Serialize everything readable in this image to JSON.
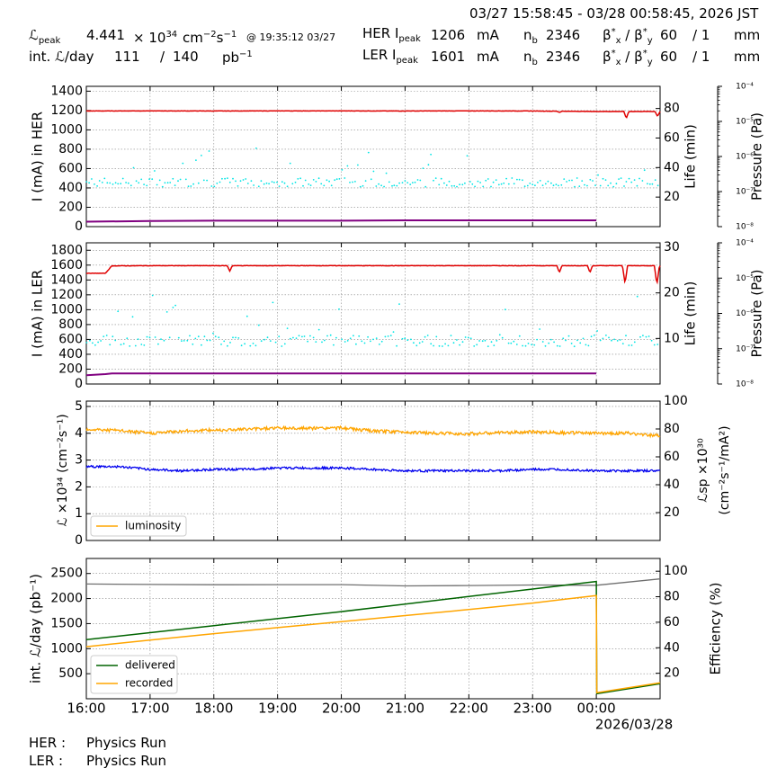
{
  "header": {
    "time_range": "03/27 15:58:45 - 03/28 00:58:45, 2026 JST",
    "lpeak_label": "ℒ",
    "lpeak_sub": "peak",
    "lpeak_value": "4.441",
    "lpeak_mult": "× 10",
    "lpeak_exp": "34",
    "lpeak_unit_a": "cm",
    "lpeak_unit_a_exp": "−2",
    "lpeak_unit_b": "s",
    "lpeak_unit_b_exp": "−1",
    "lpeak_time": "@ 19:35:12 03/27",
    "intl_label": "int. ℒ/day",
    "intl_value": "111",
    "intl_slash": "/",
    "intl_max": "140",
    "intl_unit": "pb",
    "intl_unit_exp": "−1",
    "her_label": "HER I",
    "her_sub": "peak",
    "her_value": "1206",
    "her_unit": "mA",
    "ler_label": "LER I",
    "ler_sub": "peak",
    "ler_value": "1601",
    "ler_unit": "mA",
    "nb_label": "n",
    "nb_sub": "b",
    "her_nb": "2346",
    "ler_nb": "2346",
    "beta_label": "β",
    "beta_sup": "*",
    "beta_x": "x",
    "beta_y": "y",
    "beta_slash": "/",
    "her_beta_x": "60",
    "her_beta_y": "/ 1",
    "ler_beta_x": "60",
    "ler_beta_y": "/ 1",
    "beta_unit": "mm"
  },
  "footer": {
    "her_label": "HER :",
    "her_status": "Physics Run",
    "ler_label": "LER :",
    "ler_status": "Physics Run"
  },
  "colors": {
    "current": "#e00000",
    "life": "#00e5e5",
    "pressure": "#800080",
    "luminosity": "#ffa500",
    "specific": "#0000ee",
    "delivered": "#006400",
    "recorded": "#ffa500",
    "efficiency": "#707070",
    "grid": "#888888"
  },
  "chart_data": [
    {
      "type": "line",
      "panel": "her",
      "ylabel": "I (mA) in HER",
      "ylim": [
        0,
        1450
      ],
      "yticks": [
        "0",
        "200",
        "400",
        "600",
        "800",
        "1000",
        "1200",
        "1400"
      ],
      "y2label": "Life (min)",
      "y2lim": [
        0,
        95
      ],
      "y2ticks": [
        "20",
        "40",
        "60",
        "80"
      ],
      "y3label": "Pressure (Pa)",
      "y3lim_log": [
        -8,
        -4
      ],
      "y3ticks": [
        "10⁻⁸",
        "10⁻⁷",
        "10⁻⁶",
        "10⁻⁵",
        "10⁻⁴"
      ],
      "x_hours": [
        0,
        1,
        2,
        3,
        4,
        5,
        6,
        7,
        8
      ],
      "current_mA": [
        1195,
        1196,
        1195,
        1196,
        1196,
        1195,
        1196,
        1195,
        1190
      ],
      "current_dips": [
        [
          7.42,
          1180
        ],
        [
          8.47,
          1120
        ],
        [
          8.96,
          1140
        ]
      ],
      "life_typical_min": 30,
      "pressure_log": [
        -7.86,
        -7.84,
        -7.83,
        -7.83,
        -7.83,
        -7.82,
        -7.82,
        -7.82,
        -7.82
      ]
    },
    {
      "type": "line",
      "panel": "ler",
      "ylabel": "I (mA) in LER",
      "ylim": [
        0,
        1900
      ],
      "yticks": [
        "0",
        "200",
        "400",
        "600",
        "800",
        "1000",
        "1200",
        "1400",
        "1600",
        "1800"
      ],
      "y2label": "Life (min)",
      "y2lim": [
        0,
        31
      ],
      "y2ticks": [
        "10",
        "20",
        "30"
      ],
      "y3label": "Pressure (Pa)",
      "y3lim_log": [
        -8,
        -4
      ],
      "y3ticks": [
        "10⁻⁸",
        "10⁻⁷",
        "10⁻⁶",
        "10⁻⁵",
        "10⁻⁴"
      ],
      "x_hours": [
        0,
        0.3,
        0.4,
        1,
        2,
        3,
        4,
        5,
        6,
        7,
        8
      ],
      "current_mA": [
        1490,
        1490,
        1590,
        1592,
        1592,
        1592,
        1592,
        1592,
        1592,
        1592,
        1592
      ],
      "current_dips": [
        [
          2.25,
          1520
        ],
        [
          7.42,
          1500
        ],
        [
          7.9,
          1500
        ],
        [
          8.45,
          1350
        ],
        [
          8.95,
          1340
        ]
      ],
      "life_typical_min": 9.5,
      "pressure_log": [
        -7.75,
        -7.72,
        -7.7,
        -7.7,
        -7.7,
        -7.7,
        -7.7,
        -7.7,
        -7.7,
        -7.7,
        -7.7
      ]
    },
    {
      "type": "line",
      "panel": "luminosity",
      "ylabel": "ℒ ×10³⁴ (cm⁻²s⁻¹)",
      "ylim": [
        0,
        5.2
      ],
      "yticks": [
        "0",
        "1",
        "2",
        "3",
        "4",
        "5"
      ],
      "y2label_top": "ℒsp ×10³⁰",
      "y2label_bottom": "(cm⁻²s⁻¹/mA²)",
      "y2lim": [
        0,
        100
      ],
      "y2ticks": [
        "20",
        "40",
        "60",
        "80",
        "100"
      ],
      "legend": [
        "luminosity"
      ],
      "legend_position": "lower-left",
      "x_hours": [
        0,
        0.5,
        1,
        1.5,
        2,
        2.5,
        3,
        3.5,
        4,
        4.5,
        5,
        5.5,
        6,
        6.5,
        7,
        7.5,
        8,
        8.5,
        9
      ],
      "luminosity": [
        4.15,
        4.1,
        4.0,
        4.08,
        4.12,
        4.15,
        4.2,
        4.18,
        4.2,
        4.08,
        4.05,
        4.0,
        3.98,
        4.02,
        4.05,
        4.02,
        4.0,
        4.0,
        3.9
      ],
      "specific": [
        53,
        53,
        51,
        50,
        51,
        51,
        52,
        52,
        52,
        51,
        50,
        50,
        50,
        50,
        51,
        51,
        50,
        50,
        50
      ]
    },
    {
      "type": "line",
      "panel": "integrated",
      "ylabel": "int. ℒ/day (pb⁻¹)",
      "ylim": [
        0,
        2800
      ],
      "yticks": [
        "500",
        "1000",
        "1500",
        "2000",
        "2500"
      ],
      "y2label": "Efficiency (%)",
      "y2lim": [
        0,
        110
      ],
      "y2ticks": [
        "20",
        "40",
        "60",
        "80",
        "100"
      ],
      "legend": [
        "delivered",
        "recorded"
      ],
      "legend_position": "lower-left",
      "xticks": [
        "16:00",
        "17:00",
        "18:00",
        "19:00",
        "20:00",
        "21:00",
        "22:00",
        "23:00",
        "00:00"
      ],
      "date_label": "2026/03/28",
      "x_hours": [
        0,
        1,
        2,
        3,
        4,
        5,
        6,
        7,
        8,
        9
      ],
      "delivered": [
        1180,
        1320,
        1460,
        1600,
        1740,
        1890,
        2040,
        2190,
        2340,
        100
      ],
      "recorded": [
        1040,
        1170,
        1300,
        1420,
        1540,
        1660,
        1780,
        1910,
        2060,
        120
      ],
      "efficiency": [
        90,
        89.6,
        89.4,
        89.5,
        89.5,
        88.5,
        88.8,
        89.2,
        89.0,
        94
      ]
    }
  ]
}
